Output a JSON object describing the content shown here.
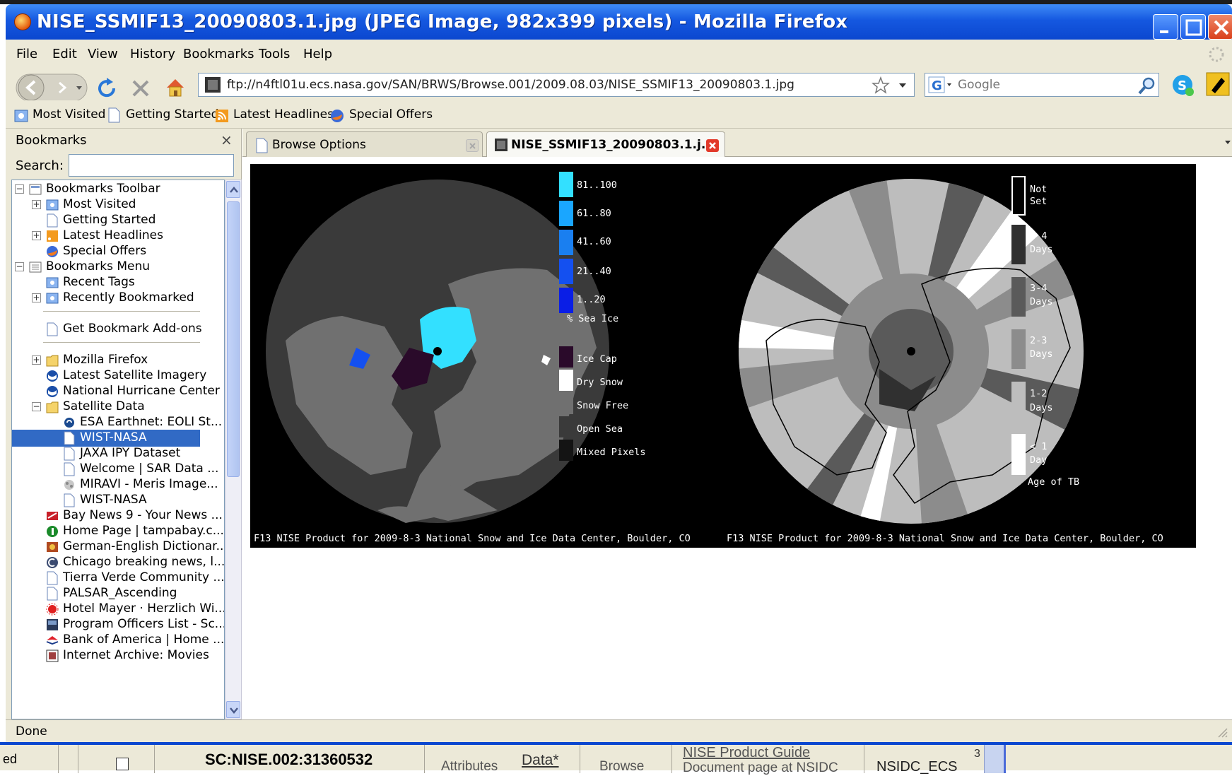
{
  "window": {
    "title": "NISE_SSMIF13_20090803.1.jpg (JPEG Image, 982x399 pixels) - Mozilla Firefox"
  },
  "menu": [
    "File",
    "Edit",
    "View",
    "History",
    "Bookmarks",
    "Tools",
    "Help"
  ],
  "nav": {
    "url": "ftp://n4ftl01u.ecs.nasa.gov/SAN/BRWS/Browse.001/2009.08.03/NISE_SSMIF13_20090803.1.jpg",
    "search_placeholder": "Google"
  },
  "bookmarks_toolbar": [
    "Most Visited",
    "Getting Started",
    "Latest Headlines",
    "Special Offers"
  ],
  "sidebar": {
    "title": "Bookmarks",
    "close": "×",
    "search_label": "Search:",
    "tree": [
      {
        "label": "Bookmarks Toolbar",
        "level": 0,
        "expander": "−"
      },
      {
        "label": "Most Visited",
        "level": 1,
        "expander": "+"
      },
      {
        "label": "Getting Started",
        "level": 1
      },
      {
        "label": "Latest Headlines",
        "level": 1,
        "expander": "+"
      },
      {
        "label": "Special Offers",
        "level": 1
      },
      {
        "label": "Bookmarks Menu",
        "level": 0,
        "expander": "−"
      },
      {
        "label": "Recent Tags",
        "level": 1
      },
      {
        "label": "Recently Bookmarked",
        "level": 1,
        "expander": "+"
      },
      {
        "label": "Get Bookmark Add-ons",
        "level": 1
      },
      {
        "label": "Mozilla Firefox",
        "level": 1,
        "expander": "+"
      },
      {
        "label": "Latest Satellite Imagery",
        "level": 1
      },
      {
        "label": "National Hurricane Center",
        "level": 1
      },
      {
        "label": "Satellite Data",
        "level": 1,
        "expander": "−"
      },
      {
        "label": "ESA Earthnet: EOLI St...",
        "level": 2
      },
      {
        "label": "WIST-NASA",
        "level": 2,
        "selected": true
      },
      {
        "label": "JAXA IPY Dataset",
        "level": 2
      },
      {
        "label": "Welcome | SAR Data ...",
        "level": 2
      },
      {
        "label": "MIRAVI - Meris Image...",
        "level": 2
      },
      {
        "label": "WIST-NASA",
        "level": 2
      },
      {
        "label": "Bay News 9 - Your News ...",
        "level": 1
      },
      {
        "label": "Home Page | tampabay.c...",
        "level": 1
      },
      {
        "label": "German-English Dictionar...",
        "level": 1
      },
      {
        "label": "Chicago breaking news, l...",
        "level": 1
      },
      {
        "label": "Tierra Verde Community ...",
        "level": 1
      },
      {
        "label": "PALSAR_Ascending",
        "level": 1
      },
      {
        "label": "Hotel Mayer · Herzlich Wi...",
        "level": 1
      },
      {
        "label": "Program Officers List - Sc...",
        "level": 1
      },
      {
        "label": "Bank of America | Home ...",
        "level": 1
      },
      {
        "label": "Internet Archive: Movies",
        "level": 1
      }
    ]
  },
  "tabs": [
    {
      "label": "Browse Options"
    },
    {
      "label": "NISE_SSMIF13_20090803.1.j..."
    }
  ],
  "image": {
    "left_caption": "F13 NISE Product for 2009-8-3 National Snow and Ice Data Center, Boulder, CO",
    "right_caption": "F13 NISE Product for 2009-8-3 National Snow and Ice Data Center, Boulder, CO",
    "ice_legend": [
      {
        "label": "81..100",
        "color": "#33e0ff"
      },
      {
        "label": "61..80",
        "color": "#1aa6ff"
      },
      {
        "label": "41..60",
        "color": "#1a7ff0"
      },
      {
        "label": "21..40",
        "color": "#1450f0"
      },
      {
        "label": "1..20",
        "color": "#0a1ee6"
      }
    ],
    "ice_legend_title": "% Sea Ice",
    "surface_legend": [
      {
        "label": "Ice Cap",
        "color": "#2a0a2a"
      },
      {
        "label": "Dry Snow",
        "color": "#ffffff"
      },
      {
        "label": "Snow Free",
        "color": "#707070"
      },
      {
        "label": "Open Sea",
        "color": "#3a3a3a"
      },
      {
        "label": "Mixed Pixels",
        "color": "#141414"
      }
    ],
    "age_legend": [
      {
        "line1": "Not",
        "line2": "Set",
        "color": "#000000",
        "outlined": true
      },
      {
        "line1": "> 4",
        "line2": "Days",
        "color": "#303030"
      },
      {
        "line1": "3-4",
        "line2": "Days",
        "color": "#5a5a5a"
      },
      {
        "line1": "2-3",
        "line2": "Days",
        "color": "#8c8c8c"
      },
      {
        "line1": "1-2",
        "line2": "Days",
        "color": "#bdbdbd"
      },
      {
        "line1": "< 1",
        "line2": "Day",
        "color": "#ffffff"
      }
    ],
    "age_legend_title": "Age of TB"
  },
  "status": "Done",
  "bottom_bar": {
    "col1": "ed",
    "id": "SC:NISE.002:31360532",
    "attributes": "Attributes",
    "data": "Data*",
    "browse": "Browse",
    "guide_link": "NISE Product Guide",
    "guide_sub": "Document page at NSIDC",
    "provider": "NSIDC_ECS",
    "num": "3"
  }
}
